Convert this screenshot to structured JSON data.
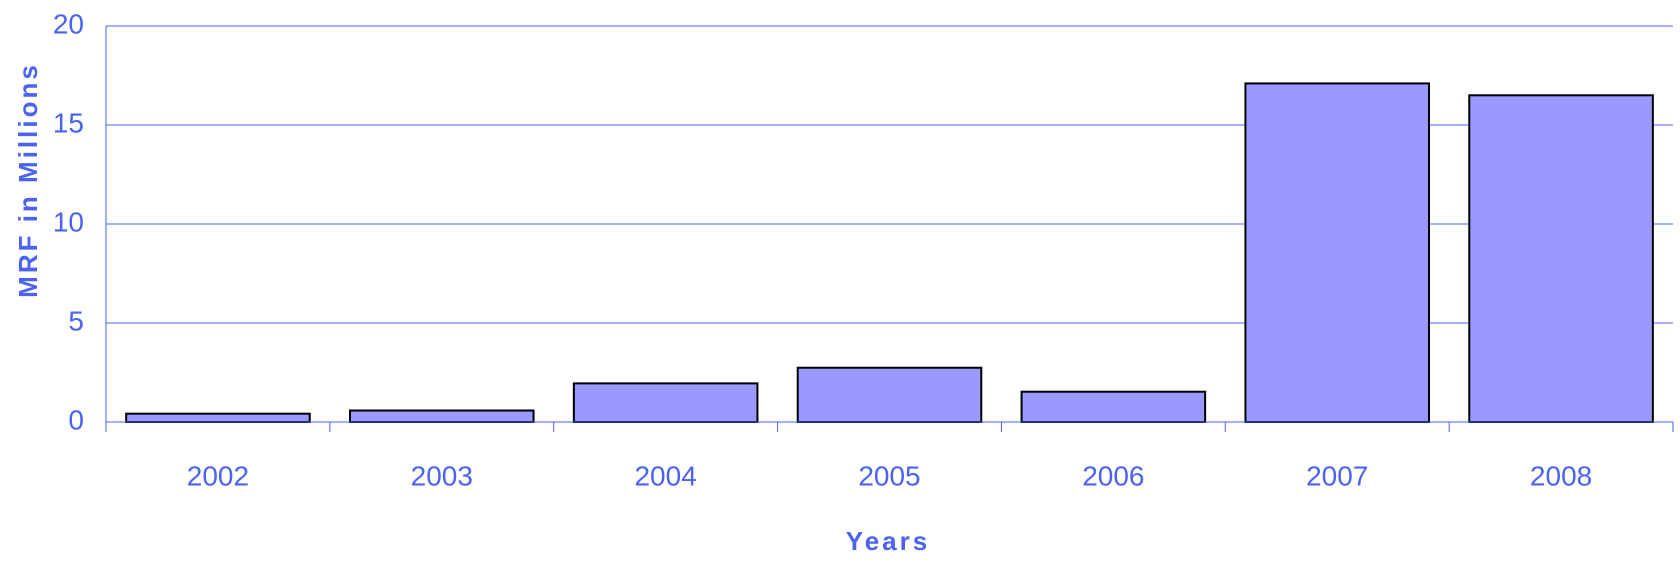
{
  "chart_data": {
    "type": "bar",
    "x_label": "Years",
    "y_label": "MRF in Millions",
    "categories": [
      "2002",
      "2003",
      "2004",
      "2005",
      "2006",
      "2007",
      "2008"
    ],
    "values": [
      0.42,
      0.58,
      1.95,
      2.74,
      1.53,
      17.1,
      16.5
    ],
    "color": "#9999ff",
    "ylim": [
      0,
      20
    ],
    "yticks": [
      0,
      5,
      10,
      15,
      20
    ],
    "grid": true
  }
}
